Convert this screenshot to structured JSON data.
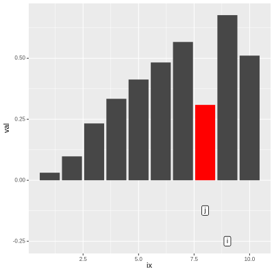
{
  "chart_data": {
    "type": "bar",
    "x_label": "ix",
    "y_label": "val",
    "x": [
      1,
      2,
      3,
      4,
      5,
      6,
      7,
      8,
      9,
      10
    ],
    "values": [
      0.031,
      0.098,
      0.233,
      0.334,
      0.413,
      0.483,
      0.567,
      0.309,
      0.677,
      0.511
    ],
    "colors": [
      "#474747",
      "#474747",
      "#474747",
      "#474747",
      "#474747",
      "#474747",
      "#474747",
      "#ff0000",
      "#474747",
      "#474747"
    ],
    "xlim": [
      0.055,
      10.945
    ],
    "ylim": [
      -0.3,
      0.725
    ],
    "xticks": [
      {
        "value": 2.5,
        "label": "2.5"
      },
      {
        "value": 5,
        "label": "5.0"
      },
      {
        "value": 7.5,
        "label": "7.5"
      },
      {
        "value": 10,
        "label": "10.0"
      }
    ],
    "yticks": [
      {
        "value": -0.25,
        "label": "-0.25"
      },
      {
        "value": 0,
        "label": "0.00"
      },
      {
        "value": 0.25,
        "label": "0.25"
      },
      {
        "value": 0.5,
        "label": "0.50"
      }
    ],
    "grid": true,
    "annotations": [
      {
        "text": "j",
        "x": 8,
        "y": -0.124
      },
      {
        "text": "i",
        "x": 9,
        "y": -0.25
      }
    ]
  }
}
